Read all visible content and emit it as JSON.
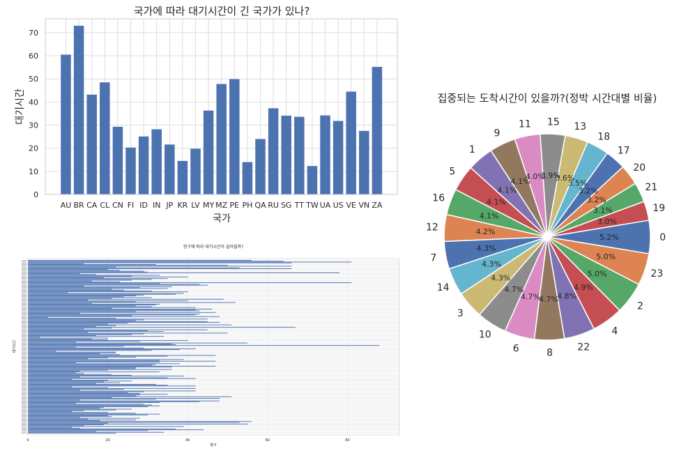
{
  "chart_data": [
    {
      "type": "bar",
      "title": "국가에 따라 대기시간이 긴 국가가 있나?",
      "xlabel": "국가",
      "ylabel": "대기시간",
      "ylim": [
        0,
        76
      ],
      "yticks": [
        0,
        10,
        20,
        30,
        40,
        50,
        60,
        70
      ],
      "grid": true,
      "color": "#4c72b0",
      "categories": [
        "AU",
        "BR",
        "CA",
        "CL",
        "CN",
        "FI",
        "ID",
        "IN",
        "JP",
        "KR",
        "LV",
        "MY",
        "MZ",
        "PE",
        "PH",
        "QA",
        "RU",
        "SG",
        "TT",
        "TW",
        "UA",
        "US",
        "VE",
        "VN",
        "ZA"
      ],
      "values": [
        60.5,
        73.0,
        43.2,
        48.5,
        29.3,
        20.3,
        25.1,
        28.2,
        21.6,
        14.5,
        19.8,
        36.3,
        47.8,
        49.9,
        14.0,
        24.0,
        37.3,
        34.1,
        33.6,
        12.3,
        34.2,
        31.8,
        44.5,
        27.5,
        55.2
      ]
    },
    {
      "type": "pie",
      "title": "집중되는 도착시간이 있을까?(정박 시간대별 비율)",
      "labels": [
        "0",
        "19",
        "21",
        "20",
        "17",
        "18",
        "13",
        "15",
        "11",
        "9",
        "1",
        "5",
        "16",
        "12",
        "7",
        "14",
        "3",
        "10",
        "6",
        "8",
        "22",
        "4",
        "2",
        "23"
      ],
      "values": [
        5.2,
        3.0,
        3.1,
        3.2,
        3.2,
        3.5,
        3.6,
        3.9,
        4.0,
        4.1,
        4.1,
        4.1,
        4.1,
        4.2,
        4.3,
        4.3,
        4.3,
        4.7,
        4.7,
        4.7,
        4.8,
        4.9,
        5.0,
        5.0
      ],
      "autopct": [
        "5.2%",
        "3.0%",
        "3.1%",
        "3.2%",
        "3.2%",
        "3.5%",
        "3.6%",
        "3.9%",
        "4.0%",
        "4.1%",
        "4.1%",
        "4.1%",
        "4.1%",
        "4.2%",
        "4.3%",
        "4.3%",
        "4.3%",
        "4.7%",
        "4.7%",
        "4.7%",
        "4.8%",
        "4.9%",
        "5.0%",
        "5.0%"
      ],
      "colors": [
        "#4c72b0",
        "#c44e52",
        "#55a868",
        "#dd8452",
        "#4c72b0",
        "#64b5cd",
        "#ccb974",
        "#8c8c8c",
        "#da8bc3",
        "#937860",
        "#8172b3",
        "#c44e52",
        "#55a868",
        "#dd8452",
        "#4c72b0",
        "#64b5cd",
        "#ccb974",
        "#8c8c8c",
        "#da8bc3",
        "#937860",
        "#8172b3",
        "#c44e52",
        "#55a868",
        "#dd8452"
      ]
    },
    {
      "type": "bar",
      "orientation": "horizontal",
      "title": "항구에 따라 대기시간이 길어질까?",
      "xlabel": "항구",
      "ylabel": "대기시간",
      "xlim": [
        0,
        93
      ],
      "xticks": [
        0,
        20,
        40,
        60,
        80
      ],
      "grid": true,
      "color": "#4c72b0",
      "values": [
        56,
        64,
        81,
        66,
        14,
        32,
        50,
        66,
        22,
        53,
        66,
        20,
        23,
        29,
        30,
        78,
        13,
        17,
        33,
        26,
        40,
        19,
        35,
        31,
        26,
        16,
        23,
        81,
        33,
        43,
        45,
        14,
        36,
        28,
        35,
        21,
        24,
        31,
        40,
        10,
        39,
        37,
        29,
        27,
        24,
        31,
        21,
        49,
        15,
        40,
        27,
        52,
        16,
        33,
        32,
        27,
        31,
        42,
        21,
        46,
        42,
        43,
        27,
        47,
        13,
        43,
        42,
        26,
        48,
        5,
        22,
        45,
        29,
        27,
        45,
        48,
        25,
        20,
        51,
        22,
        17,
        67,
        21,
        14,
        45,
        30,
        34,
        15,
        50,
        29,
        26,
        17,
        34,
        3,
        20,
        16,
        20,
        40,
        28,
        12,
        55,
        36,
        37,
        88,
        24,
        12,
        29,
        42,
        38,
        31,
        7,
        22,
        22,
        18,
        23,
        47,
        35,
        27,
        20,
        15,
        39,
        33,
        47,
        33,
        12,
        38,
        32,
        31,
        47,
        36,
        27,
        27,
        36,
        20,
        13,
        33,
        12,
        14,
        21,
        26,
        39,
        13,
        35,
        42,
        11,
        20,
        26,
        19,
        23,
        17,
        32,
        35,
        42,
        11,
        20,
        42,
        24,
        13,
        42,
        29,
        25,
        28,
        35,
        28,
        27,
        51,
        21,
        48,
        32,
        13,
        48,
        43,
        33,
        12,
        29,
        31,
        33,
        30,
        19,
        18,
        26,
        22,
        14,
        11,
        20,
        27,
        33,
        30,
        20,
        21,
        13,
        28,
        15,
        27,
        18,
        56,
        53,
        20,
        55,
        19,
        14,
        39,
        11,
        13,
        37,
        44,
        30,
        17,
        34,
        22
      ]
    }
  ]
}
